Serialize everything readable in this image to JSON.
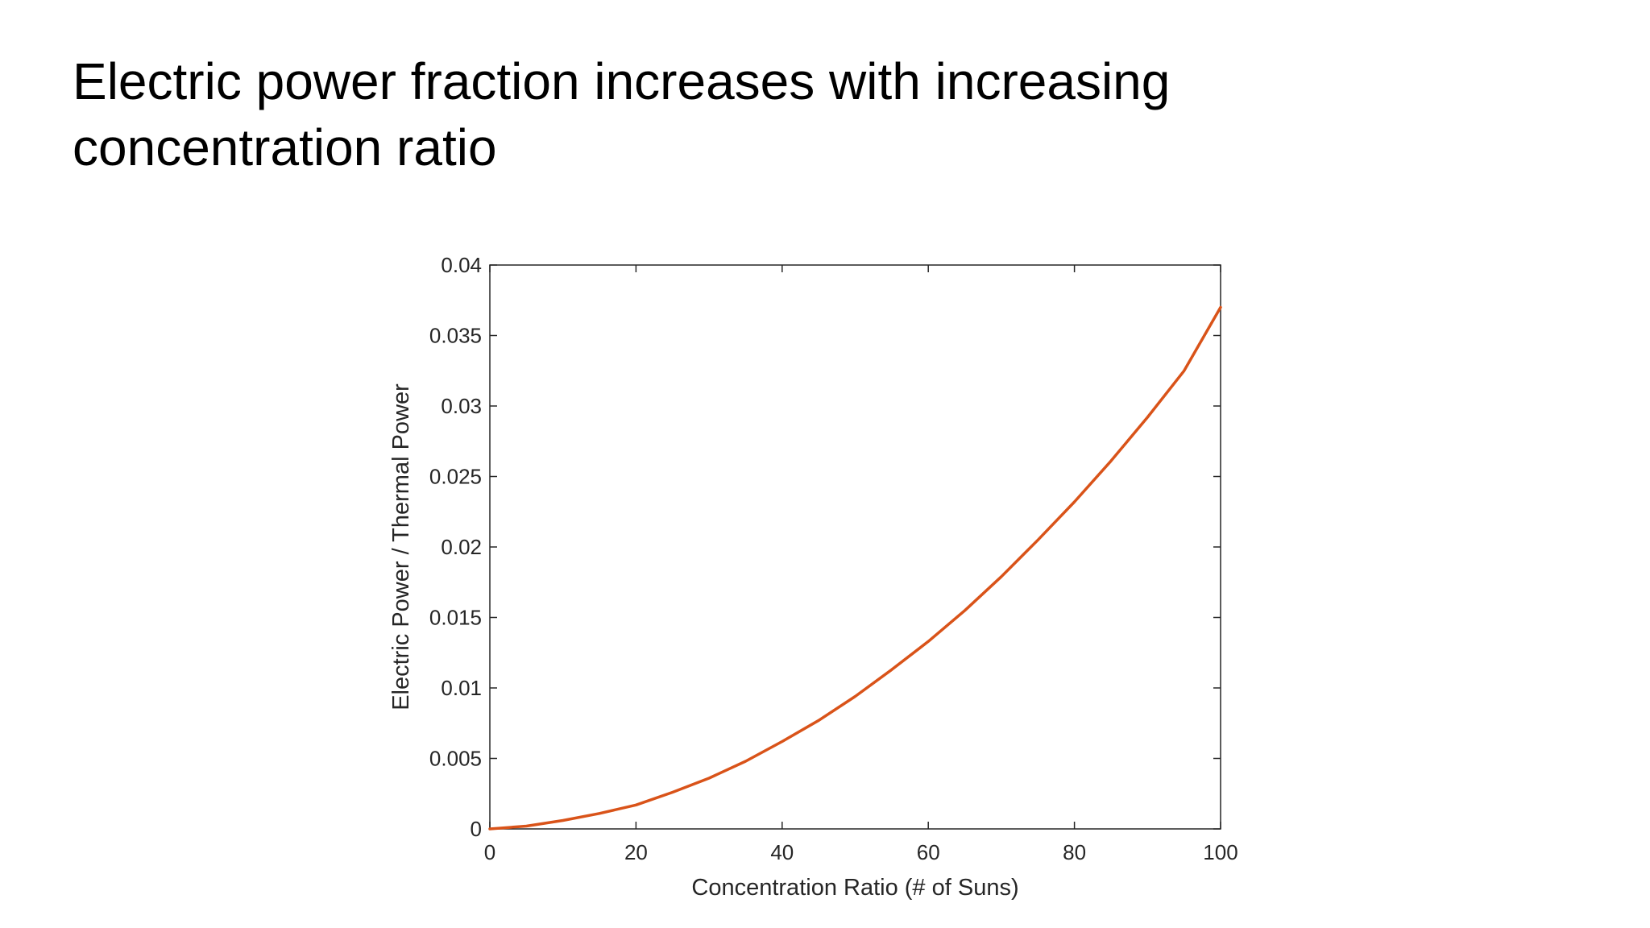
{
  "slide": {
    "title": "Electric power fraction increases with increasing concentration ratio"
  },
  "colors": {
    "curve": "#d95319",
    "axis": "#262626",
    "background": "#ffffff"
  },
  "chart_data": {
    "type": "line",
    "title": "",
    "xlabel": "Concentration Ratio (# of Suns)",
    "ylabel": "Electric Power / Thermal Power",
    "xlim": [
      0,
      100
    ],
    "ylim": [
      0,
      0.04
    ],
    "xticks": [
      0,
      20,
      40,
      60,
      80,
      100
    ],
    "xtick_labels": [
      "0",
      "20",
      "40",
      "60",
      "80",
      "100"
    ],
    "yticks": [
      0,
      0.005,
      0.01,
      0.015,
      0.02,
      0.025,
      0.03,
      0.035,
      0.04
    ],
    "ytick_labels": [
      "0",
      "0.005",
      "0.01",
      "0.015",
      "0.02",
      "0.025",
      "0.03",
      "0.035",
      "0.04"
    ],
    "grid": false,
    "box": true,
    "series": [
      {
        "name": "Electric Power / Thermal Power",
        "x": [
          0,
          5,
          10,
          15,
          20,
          25,
          30,
          35,
          40,
          45,
          50,
          55,
          60,
          65,
          70,
          75,
          80,
          85,
          90,
          95,
          100
        ],
        "y": [
          0,
          0.0002,
          0.0006,
          0.0011,
          0.0017,
          0.0026,
          0.0036,
          0.0048,
          0.0062,
          0.0077,
          0.0094,
          0.0113,
          0.0133,
          0.0155,
          0.0179,
          0.0205,
          0.0232,
          0.0261,
          0.0292,
          0.0325,
          0.037
        ]
      }
    ]
  }
}
